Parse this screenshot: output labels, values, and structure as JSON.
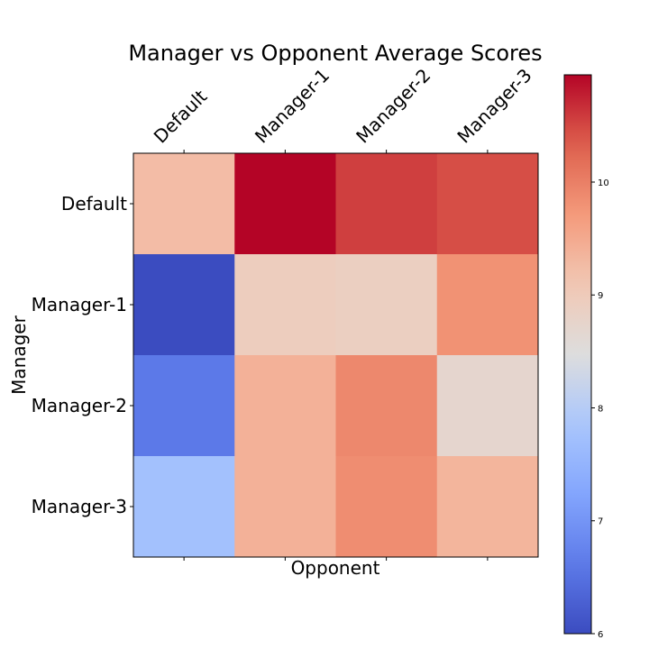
{
  "chart_data": {
    "type": "heatmap",
    "title": "Manager vs Opponent Average Scores",
    "xlabel": "Opponent",
    "ylabel": "Manager",
    "x_categories": [
      "Default",
      "Manager-1",
      "Manager-2",
      "Manager-3"
    ],
    "y_categories": [
      "Default",
      "Manager-1",
      "Manager-2",
      "Manager-3"
    ],
    "values": [
      [
        9.25,
        10.95,
        10.55,
        10.45
      ],
      [
        6.0,
        8.95,
        8.9,
        9.8
      ],
      [
        6.6,
        9.4,
        9.9,
        8.7
      ],
      [
        7.75,
        9.4,
        9.85,
        9.35
      ]
    ],
    "colormap": "coolwarm",
    "vmin": 6,
    "vmax": 10.95,
    "colorbar": {
      "ticks": [
        6,
        7,
        8,
        9,
        10
      ]
    },
    "grid": false,
    "legend": "none"
  }
}
